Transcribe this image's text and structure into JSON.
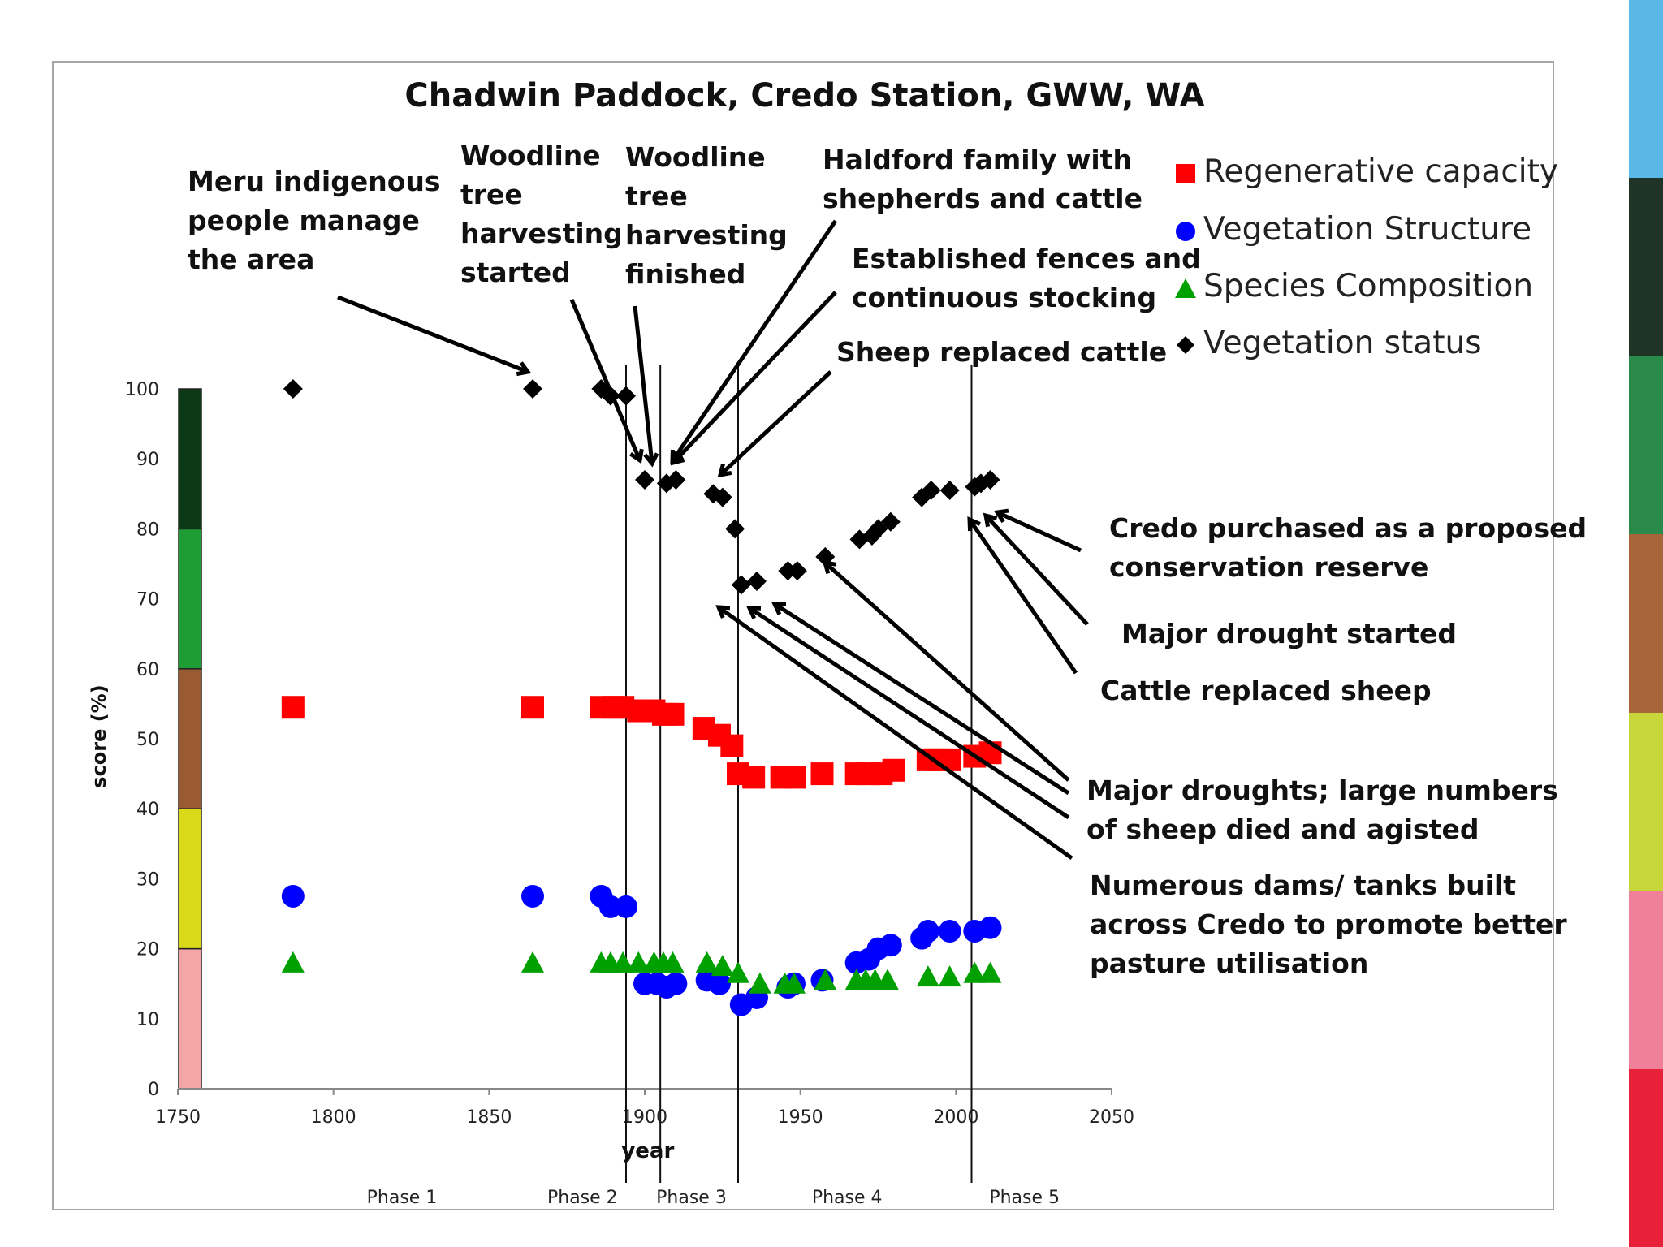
{
  "chart_data": {
    "type": "scatter",
    "title": "Chadwin Paddock, Credo Station, GWW, WA",
    "xlabel": "year",
    "ylabel": "score (%)",
    "xlim": [
      1750,
      2050
    ],
    "ylim": [
      0,
      100
    ],
    "xticks": [
      1750,
      1800,
      1850,
      1900,
      1950,
      2000,
      2050
    ],
    "yticks": [
      0,
      10,
      20,
      30,
      40,
      50,
      60,
      70,
      80,
      90,
      100
    ],
    "grid": false,
    "legend_position": "top-right",
    "series": [
      {
        "name": "Regenerative capacity",
        "marker": "square",
        "color": "#ff0000",
        "points": [
          [
            1787,
            54.5
          ],
          [
            1864,
            54.5
          ],
          [
            1886,
            54.5
          ],
          [
            1890,
            54.5
          ],
          [
            1893,
            54.5
          ],
          [
            1898,
            54
          ],
          [
            1903,
            54
          ],
          [
            1906,
            53.5
          ],
          [
            1909,
            53.5
          ],
          [
            1919,
            51.5
          ],
          [
            1924,
            50.5
          ],
          [
            1928,
            49
          ],
          [
            1930,
            45
          ],
          [
            1935,
            44.5
          ],
          [
            1944,
            44.5
          ],
          [
            1948,
            44.5
          ],
          [
            1957,
            45
          ],
          [
            1968,
            45
          ],
          [
            1972,
            45
          ],
          [
            1976,
            45
          ],
          [
            1980,
            45.5
          ],
          [
            1991,
            47
          ],
          [
            1994,
            47
          ],
          [
            1998,
            47
          ],
          [
            2006,
            47.5
          ],
          [
            2011,
            48
          ]
        ]
      },
      {
        "name": "Vegetation Structure",
        "marker": "circle",
        "color": "#0000ff",
        "points": [
          [
            1787,
            27.5
          ],
          [
            1864,
            27.5
          ],
          [
            1886,
            27.5
          ],
          [
            1889,
            26
          ],
          [
            1894,
            26
          ],
          [
            1900,
            15
          ],
          [
            1904,
            15
          ],
          [
            1907,
            14.5
          ],
          [
            1910,
            15
          ],
          [
            1920,
            15.5
          ],
          [
            1924,
            15
          ],
          [
            1931,
            12
          ],
          [
            1936,
            13
          ],
          [
            1946,
            14.5
          ],
          [
            1948,
            15
          ],
          [
            1957,
            15.5
          ],
          [
            1968,
            18
          ],
          [
            1972,
            18.5
          ],
          [
            1975,
            20
          ],
          [
            1979,
            20.5
          ],
          [
            1989,
            21.5
          ],
          [
            1991,
            22.5
          ],
          [
            1998,
            22.5
          ],
          [
            2006,
            22.5
          ],
          [
            2011,
            23
          ]
        ]
      },
      {
        "name": "Species Composition",
        "marker": "triangle",
        "color": "#00a000",
        "points": [
          [
            1787,
            18
          ],
          [
            1864,
            18
          ],
          [
            1886,
            18
          ],
          [
            1889,
            18
          ],
          [
            1893,
            18
          ],
          [
            1898,
            18
          ],
          [
            1903,
            18
          ],
          [
            1906,
            18
          ],
          [
            1909,
            18
          ],
          [
            1920,
            18
          ],
          [
            1925,
            17.5
          ],
          [
            1930,
            16.5
          ],
          [
            1937,
            15
          ],
          [
            1945,
            15
          ],
          [
            1948,
            15
          ],
          [
            1958,
            15.5
          ],
          [
            1968,
            15.5
          ],
          [
            1971,
            15.5
          ],
          [
            1974,
            15.5
          ],
          [
            1978,
            15.5
          ],
          [
            1991,
            16
          ],
          [
            1998,
            16
          ],
          [
            2006,
            16.5
          ],
          [
            2011,
            16.5
          ]
        ]
      },
      {
        "name": "Vegetation status",
        "marker": "diamond",
        "color": "#000000",
        "points": [
          [
            1787,
            100
          ],
          [
            1864,
            100
          ],
          [
            1886,
            100
          ],
          [
            1889,
            99
          ],
          [
            1894,
            99
          ],
          [
            1900,
            87
          ],
          [
            1907,
            86.5
          ],
          [
            1910,
            87
          ],
          [
            1922,
            85
          ],
          [
            1925,
            84.5
          ],
          [
            1929,
            80
          ],
          [
            1931,
            72
          ],
          [
            1936,
            72.5
          ],
          [
            1946,
            74
          ],
          [
            1949,
            74
          ],
          [
            1958,
            76
          ],
          [
            1969,
            78.5
          ],
          [
            1973,
            79
          ],
          [
            1975,
            80
          ],
          [
            1979,
            81
          ],
          [
            1989,
            84.5
          ],
          [
            1992,
            85.5
          ],
          [
            1998,
            85.5
          ],
          [
            2006,
            86
          ],
          [
            2008,
            86.5
          ],
          [
            2011,
            87
          ]
        ]
      }
    ],
    "phase_lines": [
      1894,
      1905,
      1930,
      2005
    ],
    "phases": [
      {
        "label": "Phase 1",
        "x": 1822
      },
      {
        "label": "Phase 2",
        "x": 1880
      },
      {
        "label": "Phase 3",
        "x": 1915
      },
      {
        "label": "Phase 4",
        "x": 1965
      },
      {
        "label": "Phase 5",
        "x": 2022
      }
    ],
    "condition_bands": [
      {
        "from": 0,
        "to": 20,
        "color": "#f4a6a6"
      },
      {
        "from": 20,
        "to": 40,
        "color": "#d9d91a"
      },
      {
        "from": 40,
        "to": 60,
        "color": "#9a5a32"
      },
      {
        "from": 60,
        "to": 80,
        "color": "#1f9d35"
      },
      {
        "from": 80,
        "to": 100,
        "color": "#0d3a16"
      }
    ],
    "annotations": {
      "meru": [
        "Meru indigenous",
        "people manage",
        "the area"
      ],
      "woodline_started": [
        "Woodline",
        "tree",
        "harvesting",
        "started"
      ],
      "woodline_finished": [
        "Woodline",
        "tree",
        "harvesting",
        "finished"
      ],
      "haldford": [
        "Haldford family with",
        "shepherds and cattle"
      ],
      "fences": [
        "Established fences and",
        "continuous stocking"
      ],
      "sheep_replaced": [
        "Sheep replaced cattle"
      ],
      "credo_purchased": [
        "Credo purchased as a proposed",
        "conservation reserve"
      ],
      "major_drought": [
        "Major drought started"
      ],
      "cattle_replaced": [
        "Cattle replaced sheep"
      ],
      "major_droughts": [
        "Major droughts; large numbers",
        "of sheep died and agisted"
      ],
      "dams": [
        "Numerous dams/ tanks built",
        "across Credo to promote better",
        "pasture utilisation"
      ]
    }
  },
  "side_strip_colors": [
    "#5ab8e6",
    "#1f3326",
    "#2a8a4a",
    "#a8653a",
    "#c7d63a",
    "#f07f9a",
    "#e8213a"
  ]
}
